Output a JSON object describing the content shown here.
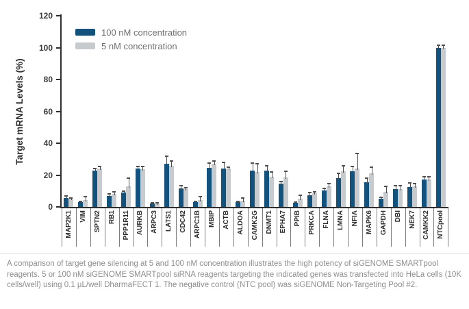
{
  "figure": {
    "caption": "A comparison of target gene silencing at 5 and 100 nM concentration illustrates the high potency of siGENOME SMARTpool reagents. 5 or 100 nM siGENOME SMARTpool siRNA reagents targeting the indicated genes was transfected into HeLa cells (10K cells/well) using 0.1 µL/well DharmaFECT 1. The negative control (NTC pool) was siGENOME Non-Targeting Pool #2."
  },
  "chart_data": {
    "type": "bar",
    "title": "",
    "xlabel": "",
    "ylabel": "Target mRNA Levels (%)",
    "ylim": [
      0,
      120
    ],
    "yticks": [
      0,
      20,
      40,
      60,
      80,
      100,
      120
    ],
    "grid": false,
    "legend_position": "top-left-inside",
    "error_bars": true,
    "colors": {
      "axis": "#2e2e2e",
      "tick_label": "#3a3a3a",
      "legend_text": "#6f6f6f",
      "error_bar": "#4f4f4f",
      "caption_text": "#8e8e8e"
    },
    "categories": [
      "MAP2K1",
      "VIM",
      "SPTN2",
      "RB1",
      "PPP1R11",
      "AURKB",
      "ARPC3",
      "LATS1",
      "CDC42",
      "ARPC1B",
      "MBIP",
      "ACTB",
      "ALDOA",
      "CAMK2G",
      "DNMT1",
      "EPHA7",
      "PPIB",
      "PRKCA",
      "FLNA",
      "LMNA",
      "NFIA",
      "MAPK6",
      "GAPDH",
      "DBI",
      "NEK7",
      "CAMKK2",
      "NTCpool"
    ],
    "series": [
      {
        "name": "100 nM concentration",
        "color": "#14527e",
        "values": [
          5.5,
          3,
          23,
          7,
          9,
          24,
          2,
          27,
          11.5,
          3,
          24.5,
          24,
          3,
          23,
          23,
          14.5,
          2.5,
          7.5,
          10.5,
          18,
          22.5,
          15.5,
          5,
          11,
          12.5,
          17,
          100
        ],
        "errors": [
          1.5,
          0.4,
          1,
          1,
          1,
          1.5,
          0.4,
          5,
          2,
          0.5,
          3,
          4,
          0.4,
          4.5,
          3,
          1.5,
          0.4,
          1.5,
          1,
          3,
          3,
          2.5,
          1,
          2.5,
          2.5,
          2,
          1.5
        ]
      },
      {
        "name": "5 nM concentration",
        "color": "#c8cbcd",
        "values": [
          5,
          4.5,
          24,
          8,
          13,
          23.5,
          2,
          26,
          11,
          4.5,
          27,
          24,
          4,
          22,
          19,
          18.5,
          5,
          8.5,
          13,
          22.5,
          24,
          21,
          9.5,
          11,
          13,
          17,
          100
        ],
        "errors": [
          0.6,
          2,
          1.5,
          1.5,
          5,
          2,
          0.4,
          3,
          1,
          2,
          2,
          1,
          1.5,
          5,
          3,
          4,
          2.5,
          1,
          1.5,
          3.5,
          9.5,
          4,
          3.5,
          2.5,
          1.5,
          2,
          1.5
        ]
      }
    ]
  }
}
